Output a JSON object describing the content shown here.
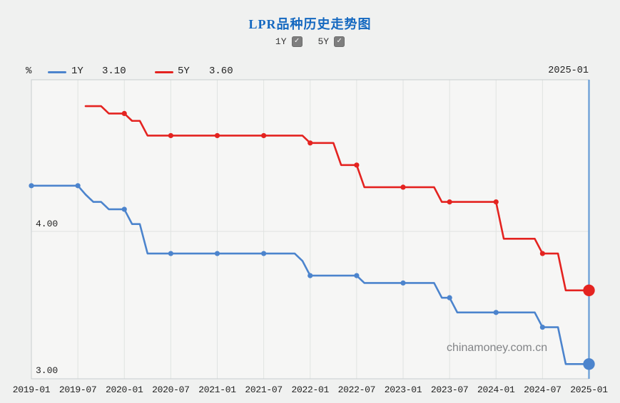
{
  "page": {
    "background": "#f0f1f0"
  },
  "header": {
    "title": "LPR品种历史走势图",
    "title_color": "#1468c0",
    "toggles": [
      {
        "label": "1Y",
        "checked": true,
        "checkmark": "✓"
      },
      {
        "label": "5Y",
        "checked": true,
        "checkmark": "✓"
      }
    ]
  },
  "legend": {
    "unit": "%",
    "items": [
      {
        "label": "1Y",
        "value": "3.10",
        "color": "#4c84cd"
      },
      {
        "label": "5Y",
        "value": "3.60",
        "color": "#e42320"
      }
    ],
    "date_readout": "2025-01"
  },
  "watermark": "chinamoney.com.cn",
  "chart_data": {
    "type": "line",
    "title": "LPR品种历史走势图",
    "ylabel": "%",
    "legend_position": "top",
    "grid": true,
    "x_start": "2019-01",
    "x_end": "2025-01",
    "x_tick_labels": [
      "2019-01",
      "2019-07",
      "2020-01",
      "2020-07",
      "2021-01",
      "2021-07",
      "2022-01",
      "2022-07",
      "2023-01",
      "2023-07",
      "2024-01",
      "2024-07",
      "2025-01"
    ],
    "x_tick_interval_months": 6,
    "y_tick_labels": [
      "4.00",
      "3.00"
    ],
    "ylim": [
      3.0,
      5.06
    ],
    "marker_every_months": 6,
    "cursor": {
      "x_label": "2025-01",
      "color": "#70a2d8"
    },
    "grid_color": "#e0e3e1",
    "border_color": "#c8cdd0",
    "plot_background": "#f6f6f5",
    "series": [
      {
        "name": "1Y",
        "color": "#4c84cd",
        "start_month": "2019-01",
        "end_value": 3.1,
        "values": [
          4.31,
          4.31,
          4.31,
          4.31,
          4.31,
          4.31,
          4.31,
          4.25,
          4.2,
          4.2,
          4.15,
          4.15,
          4.15,
          4.05,
          4.05,
          3.85,
          3.85,
          3.85,
          3.85,
          3.85,
          3.85,
          3.85,
          3.85,
          3.85,
          3.85,
          3.85,
          3.85,
          3.85,
          3.85,
          3.85,
          3.85,
          3.85,
          3.85,
          3.85,
          3.85,
          3.8,
          3.7,
          3.7,
          3.7,
          3.7,
          3.7,
          3.7,
          3.7,
          3.65,
          3.65,
          3.65,
          3.65,
          3.65,
          3.65,
          3.65,
          3.65,
          3.65,
          3.65,
          3.55,
          3.55,
          3.45,
          3.45,
          3.45,
          3.45,
          3.45,
          3.45,
          3.45,
          3.45,
          3.45,
          3.45,
          3.45,
          3.35,
          3.35,
          3.35,
          3.1,
          3.1,
          3.1,
          3.1
        ]
      },
      {
        "name": "5Y",
        "color": "#e42320",
        "start_month": "2019-08",
        "end_value": 3.6,
        "values": [
          4.85,
          4.85,
          4.85,
          4.8,
          4.8,
          4.8,
          4.75,
          4.75,
          4.65,
          4.65,
          4.65,
          4.65,
          4.65,
          4.65,
          4.65,
          4.65,
          4.65,
          4.65,
          4.65,
          4.65,
          4.65,
          4.65,
          4.65,
          4.65,
          4.65,
          4.65,
          4.65,
          4.65,
          4.65,
          4.6,
          4.6,
          4.6,
          4.6,
          4.45,
          4.45,
          4.45,
          4.3,
          4.3,
          4.3,
          4.3,
          4.3,
          4.3,
          4.3,
          4.3,
          4.3,
          4.3,
          4.2,
          4.2,
          4.2,
          4.2,
          4.2,
          4.2,
          4.2,
          4.2,
          3.95,
          3.95,
          3.95,
          3.95,
          3.95,
          3.85,
          3.85,
          3.85,
          3.6,
          3.6,
          3.6,
          3.6
        ]
      }
    ]
  }
}
